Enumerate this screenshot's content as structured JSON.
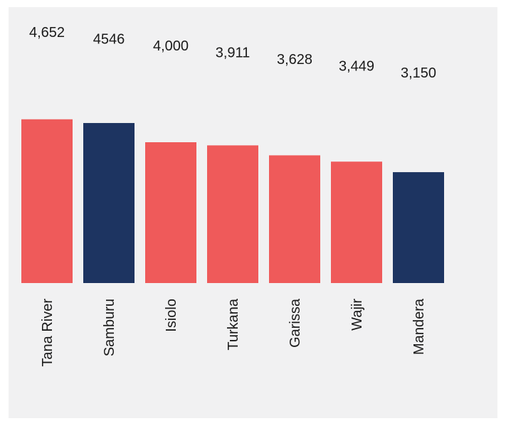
{
  "colors": {
    "panel_background": "#f1f1f2",
    "bar_default": "#ef5a5a",
    "bar_highlight": "#1d3461",
    "text": "#1a1a1a"
  },
  "chart_data": {
    "type": "bar",
    "title": "",
    "xlabel": "",
    "ylabel": "",
    "categories": [
      "Tana River",
      "Samburu",
      "Isiolo",
      "Turkana",
      "Garissa",
      "Wajir",
      "Mandera"
    ],
    "values": [
      4652,
      4546,
      4000,
      3911,
      3628,
      3449,
      3150
    ],
    "data_labels": [
      "4,652",
      "4546",
      "4,000",
      "3,911",
      "3,628",
      "3,449",
      "3,150"
    ],
    "highlighted_categories": [
      "Samburu",
      "Mandera"
    ],
    "ylim": [
      0,
      4800
    ],
    "grid": false,
    "legend": "none",
    "category_label_orientation": "vertical"
  }
}
